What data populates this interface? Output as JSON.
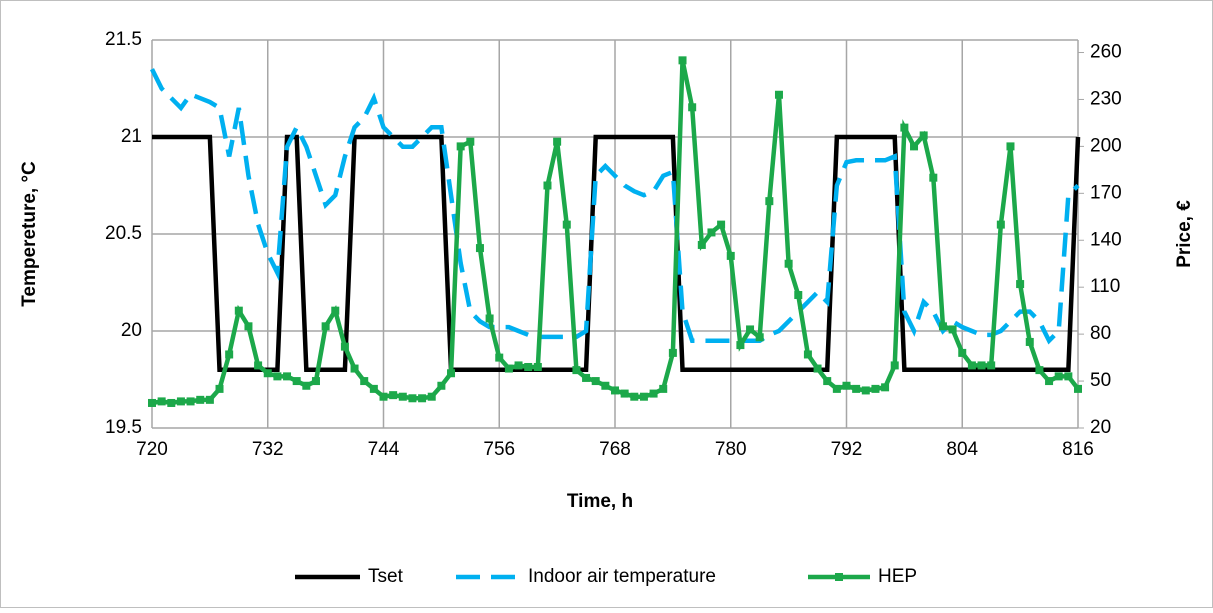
{
  "chart_data": {
    "type": "line",
    "xlabel": "Time, h",
    "ylabel": "Tempereture, °C",
    "y2label": "Price, €",
    "x": [
      720,
      721,
      722,
      723,
      724,
      725,
      726,
      727,
      728,
      729,
      730,
      731,
      732,
      733,
      734,
      735,
      736,
      737,
      738,
      739,
      740,
      741,
      742,
      743,
      744,
      745,
      746,
      747,
      748,
      749,
      750,
      751,
      752,
      753,
      754,
      755,
      756,
      757,
      758,
      759,
      760,
      761,
      762,
      763,
      764,
      765,
      766,
      767,
      768,
      769,
      770,
      771,
      772,
      773,
      774,
      775,
      776,
      777,
      778,
      779,
      780,
      781,
      782,
      783,
      784,
      785,
      786,
      787,
      788,
      789,
      790,
      791,
      792,
      793,
      794,
      795,
      796,
      797,
      798,
      799,
      800,
      801,
      802,
      803,
      804,
      805,
      806,
      807,
      808,
      809,
      810,
      811,
      812,
      813,
      814,
      815,
      816
    ],
    "xlim": [
      720,
      816
    ],
    "xticks": [
      720,
      732,
      744,
      756,
      768,
      780,
      792,
      804,
      816
    ],
    "ylim": [
      19.5,
      21.5
    ],
    "yticks": [
      19.5,
      20,
      20.5,
      21,
      21.5
    ],
    "y2lim": [
      20,
      268
    ],
    "y2ticks": [
      20,
      50,
      80,
      110,
      140,
      170,
      200,
      230,
      260
    ],
    "grid": true,
    "legend": "bottom",
    "series": [
      {
        "name": "Tset",
        "color": "#000000",
        "line_style": "solid",
        "values": [
          21,
          21,
          21,
          21,
          21,
          21,
          21,
          19.8,
          19.8,
          19.8,
          19.8,
          19.8,
          19.8,
          19.8,
          21,
          21,
          19.8,
          19.8,
          19.8,
          19.8,
          19.8,
          21,
          21,
          21,
          21,
          21,
          21,
          21,
          21,
          21,
          21,
          19.8,
          19.8,
          19.8,
          19.8,
          19.8,
          19.8,
          19.8,
          19.8,
          19.8,
          19.8,
          19.8,
          19.8,
          19.8,
          19.8,
          19.8,
          21,
          21,
          21,
          21,
          21,
          21,
          21,
          21,
          21,
          19.8,
          19.8,
          19.8,
          19.8,
          19.8,
          19.8,
          19.8,
          19.8,
          19.8,
          19.8,
          19.8,
          19.8,
          19.8,
          19.8,
          19.8,
          19.8,
          21,
          21,
          21,
          21,
          21,
          21,
          21,
          19.8,
          19.8,
          19.8,
          19.8,
          19.8,
          19.8,
          19.8,
          19.8,
          19.8,
          19.8,
          19.8,
          19.8,
          19.8,
          19.8,
          19.8,
          19.8,
          19.8,
          19.8,
          21
        ]
      },
      {
        "name": "Indoor air temperature",
        "color": "#00b0f0",
        "line_style": "dashed",
        "values": [
          21.35,
          21.25,
          21.2,
          21.15,
          21.22,
          21.2,
          21.18,
          21.15,
          20.9,
          21.15,
          20.8,
          20.55,
          20.4,
          20.3,
          20.95,
          21.05,
          20.95,
          20.8,
          20.65,
          20.7,
          20.9,
          21.05,
          21.1,
          21.2,
          21.05,
          21,
          20.95,
          20.95,
          21,
          21.05,
          21.05,
          20.7,
          20.35,
          20.1,
          20.05,
          20.02,
          20.02,
          20.02,
          20,
          19.98,
          19.97,
          19.97,
          19.97,
          19.97,
          19.97,
          20,
          20.8,
          20.85,
          20.8,
          20.75,
          20.72,
          20.7,
          20.72,
          20.8,
          20.82,
          20.1,
          19.95,
          19.95,
          19.95,
          19.95,
          19.95,
          19.95,
          19.95,
          19.95,
          19.98,
          20,
          20.05,
          20.1,
          20.15,
          20.2,
          20.15,
          20.75,
          20.87,
          20.88,
          20.88,
          20.88,
          20.88,
          20.9,
          20.1,
          20,
          20.15,
          20.1,
          20,
          20.05,
          20.02,
          20,
          19.98,
          19.98,
          20,
          20.05,
          20.1,
          20.1,
          20.05,
          19.95,
          20,
          20.7,
          20.75
        ]
      },
      {
        "name": "HEP",
        "color": "#1ca84a",
        "line_style": "solid",
        "marker": "square",
        "axis": "y2",
        "values": [
          36,
          37,
          36,
          37,
          37,
          38,
          38,
          45,
          67,
          95,
          85,
          60,
          55,
          53,
          53,
          50,
          47,
          50,
          85,
          95,
          72,
          58,
          50,
          45,
          40,
          41,
          40,
          39,
          39,
          40,
          47,
          55,
          200,
          203,
          135,
          90,
          65,
          58,
          60,
          59,
          59,
          175,
          203,
          150,
          57,
          52,
          50,
          47,
          44,
          42,
          40,
          40,
          42,
          45,
          68,
          255,
          225,
          137,
          145,
          150,
          130,
          73,
          83,
          78,
          165,
          233,
          125,
          105,
          67,
          58,
          50,
          45,
          47,
          45,
          44,
          45,
          46,
          60,
          212,
          200,
          207,
          180,
          85,
          83,
          68,
          60,
          60,
          60,
          150,
          200,
          112,
          75,
          57,
          50,
          53,
          53,
          45
        ]
      }
    ]
  }
}
